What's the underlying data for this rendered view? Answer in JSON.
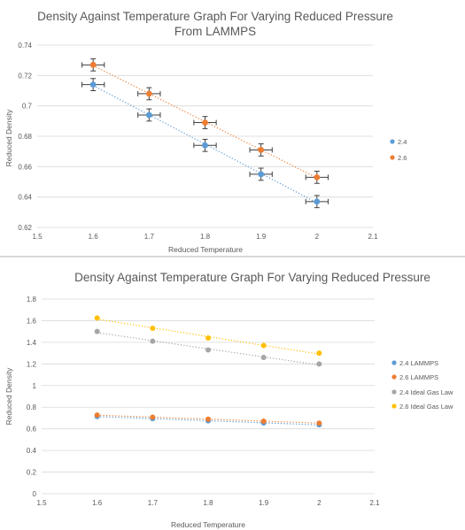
{
  "chart_data": [
    {
      "type": "scatter",
      "title": "Density Against Temperature Graph For Varying Reduced Pressure",
      "subtitle": "From LAMMPS",
      "xlabel": "Reduced Temperature",
      "ylabel": "Reduced Density",
      "xlim": [
        1.5,
        2.1
      ],
      "ylim": [
        0.62,
        0.74
      ],
      "xticks": [
        "1.5",
        "1.6",
        "1.7",
        "1.8",
        "1.9",
        "2",
        "2.1"
      ],
      "yticks": [
        "0.62",
        "0.64",
        "0.66",
        "0.68",
        "0.7",
        "0.72",
        "0.74"
      ],
      "grid": true,
      "legend_position": "right",
      "error_bars": {
        "x": 0.02,
        "y": 0.004
      },
      "trendline": "linear dotted",
      "series": [
        {
          "name": "2.4",
          "color": "#5b9bd5",
          "x": [
            1.6,
            1.7,
            1.8,
            1.9,
            2.0
          ],
          "y": [
            0.714,
            0.694,
            0.674,
            0.655,
            0.637
          ]
        },
        {
          "name": "2.6",
          "color": "#ed7d31",
          "x": [
            1.6,
            1.7,
            1.8,
            1.9,
            2.0
          ],
          "y": [
            0.727,
            0.708,
            0.689,
            0.671,
            0.653
          ]
        }
      ]
    },
    {
      "type": "scatter",
      "title": "Density Against Temperature Graph For Varying Reduced Pressure",
      "xlabel": "Reduced Temperature",
      "ylabel": "Reduced Density",
      "xlim": [
        1.5,
        2.1
      ],
      "ylim": [
        0,
        1.8
      ],
      "xticks": [
        "1.5",
        "1.6",
        "1.7",
        "1.8",
        "1.9",
        "2",
        "2.1"
      ],
      "yticks": [
        "0",
        "0.2",
        "0.4",
        "0.6",
        "0.8",
        "1",
        "1.2",
        "1.4",
        "1.6",
        "1.8"
      ],
      "grid": true,
      "legend_position": "right",
      "trendline": "linear dotted",
      "series": [
        {
          "name": "2.4 LAMMPS",
          "color": "#5b9bd5",
          "x": [
            1.6,
            1.7,
            1.8,
            1.9,
            2.0
          ],
          "y": [
            0.714,
            0.694,
            0.674,
            0.655,
            0.637
          ]
        },
        {
          "name": "2.6 LAMMPS",
          "color": "#ed7d31",
          "x": [
            1.6,
            1.7,
            1.8,
            1.9,
            2.0
          ],
          "y": [
            0.727,
            0.708,
            0.689,
            0.671,
            0.653
          ]
        },
        {
          "name": "2.4 Ideal Gas Law",
          "color": "#a5a5a5",
          "x": [
            1.6,
            1.7,
            1.8,
            1.9,
            2.0
          ],
          "y": [
            1.5,
            1.41,
            1.33,
            1.26,
            1.2
          ]
        },
        {
          "name": "2.6 Ideal Gas Law",
          "color": "#ffc000",
          "x": [
            1.6,
            1.7,
            1.8,
            1.9,
            2.0
          ],
          "y": [
            1.625,
            1.53,
            1.44,
            1.37,
            1.3
          ]
        }
      ]
    }
  ]
}
